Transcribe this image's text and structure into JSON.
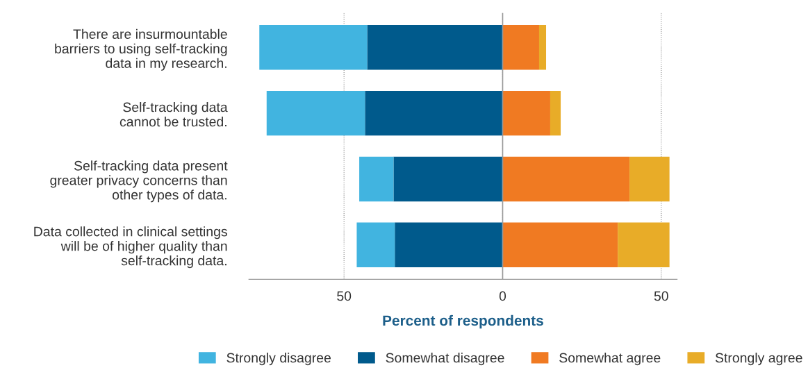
{
  "chart_data": {
    "type": "bar",
    "orientation": "horizontal",
    "stacked": true,
    "categories": [
      "There are insurmountable\nbarriers to using self-tracking\ndata in my research.",
      "Self-tracking data\ncannot be trusted.",
      "Self-tracking data present\ngreater privacy concerns than\nother types of data.",
      "Data collected in clinical settings\nwill be of higher quality than\nself-tracking data."
    ],
    "series": [
      {
        "name": "Somewhat disagree",
        "color": "#005a8c",
        "values": [
          -42.7,
          -43.4,
          -34.4,
          -34
        ]
      },
      {
        "name": "Strongly disagree",
        "color": "#41b4e0",
        "values": [
          -34,
          -31,
          -10.8,
          -12
        ]
      },
      {
        "name": "Somewhat agree",
        "color": "#f07a22",
        "values": [
          11.5,
          15,
          40,
          36.3
        ]
      },
      {
        "name": "Strongly agree",
        "color": "#e8ac28",
        "values": [
          2.2,
          3.3,
          12.6,
          16.3
        ]
      }
    ],
    "xlabel": "Percent of respondents",
    "xlim": [
      -80,
      55
    ],
    "xticks": [
      {
        "value": -50,
        "label": "50"
      },
      0,
      50
    ],
    "ref_lines": [
      {
        "axis": "x",
        "value": 0,
        "color": "#999999"
      }
    ],
    "grid": "x",
    "legend": "bottom"
  }
}
